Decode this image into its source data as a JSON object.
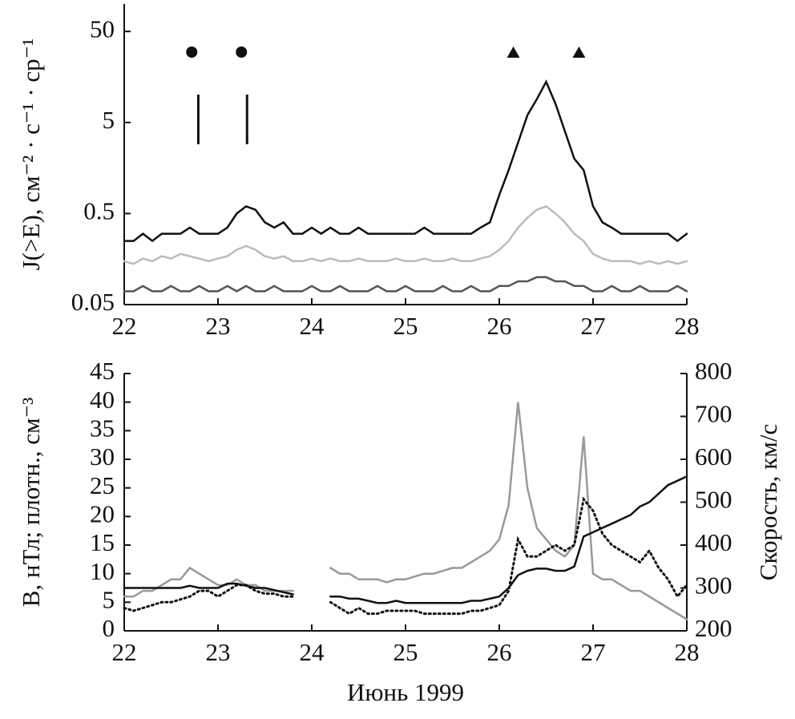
{
  "chart_data": [
    {
      "type": "line",
      "yscale": "log",
      "ylabel": "J(>E), см⁻² · с⁻¹ · ср⁻¹",
      "xlim": [
        22,
        28
      ],
      "xticks": [
        22,
        23,
        24,
        25,
        26,
        27,
        28
      ],
      "ylim": [
        0.05,
        100
      ],
      "yticks": [
        0.05,
        0.5,
        5,
        50
      ],
      "x": [
        22.0,
        22.1,
        22.2,
        22.3,
        22.4,
        22.5,
        22.6,
        22.7,
        22.8,
        22.9,
        23.0,
        23.1,
        23.2,
        23.3,
        23.4,
        23.5,
        23.6,
        23.7,
        23.8,
        23.9,
        24.0,
        24.1,
        24.2,
        24.3,
        24.4,
        24.5,
        24.6,
        24.7,
        24.8,
        24.9,
        25.0,
        25.1,
        25.2,
        25.3,
        25.4,
        25.5,
        25.6,
        25.7,
        25.8,
        25.9,
        26.0,
        26.1,
        26.2,
        26.3,
        26.4,
        26.5,
        26.6,
        26.7,
        26.8,
        26.9,
        27.0,
        27.1,
        27.2,
        27.3,
        27.4,
        27.5,
        27.6,
        27.7,
        27.8,
        27.9,
        28.0
      ],
      "series": [
        {
          "color": "#111111",
          "values": [
            0.25,
            0.25,
            0.3,
            0.25,
            0.3,
            0.3,
            0.3,
            0.35,
            0.3,
            0.3,
            0.3,
            0.35,
            0.5,
            0.6,
            0.55,
            0.4,
            0.35,
            0.4,
            0.3,
            0.3,
            0.35,
            0.3,
            0.35,
            0.3,
            0.3,
            0.35,
            0.3,
            0.3,
            0.3,
            0.3,
            0.3,
            0.3,
            0.35,
            0.3,
            0.3,
            0.3,
            0.3,
            0.3,
            0.35,
            0.4,
            0.8,
            1.5,
            3,
            6,
            9,
            14,
            8,
            4,
            2,
            1.5,
            0.6,
            0.4,
            0.35,
            0.3,
            0.3,
            0.3,
            0.3,
            0.3,
            0.3,
            0.25,
            0.3
          ]
        },
        {
          "color": "#bbbbbb",
          "values": [
            0.15,
            0.14,
            0.16,
            0.15,
            0.17,
            0.16,
            0.18,
            0.17,
            0.16,
            0.15,
            0.16,
            0.17,
            0.2,
            0.22,
            0.2,
            0.17,
            0.16,
            0.17,
            0.15,
            0.15,
            0.16,
            0.15,
            0.16,
            0.15,
            0.15,
            0.16,
            0.15,
            0.15,
            0.15,
            0.16,
            0.15,
            0.15,
            0.16,
            0.15,
            0.15,
            0.16,
            0.15,
            0.15,
            0.16,
            0.17,
            0.2,
            0.25,
            0.35,
            0.45,
            0.55,
            0.6,
            0.5,
            0.4,
            0.3,
            0.25,
            0.18,
            0.16,
            0.15,
            0.15,
            0.15,
            0.14,
            0.15,
            0.14,
            0.15,
            0.14,
            0.15
          ]
        },
        {
          "color": "#555555",
          "values": [
            0.07,
            0.07,
            0.08,
            0.07,
            0.07,
            0.08,
            0.07,
            0.07,
            0.08,
            0.07,
            0.07,
            0.08,
            0.07,
            0.08,
            0.07,
            0.07,
            0.08,
            0.07,
            0.07,
            0.07,
            0.08,
            0.07,
            0.07,
            0.08,
            0.07,
            0.07,
            0.07,
            0.08,
            0.07,
            0.07,
            0.08,
            0.07,
            0.07,
            0.07,
            0.08,
            0.07,
            0.07,
            0.08,
            0.07,
            0.07,
            0.08,
            0.08,
            0.09,
            0.09,
            0.1,
            0.1,
            0.09,
            0.09,
            0.08,
            0.08,
            0.07,
            0.07,
            0.08,
            0.07,
            0.07,
            0.08,
            0.07,
            0.07,
            0.07,
            0.08,
            0.07
          ]
        }
      ],
      "markers": [
        {
          "shape": "circle",
          "x": 22.72
        },
        {
          "shape": "circle",
          "x": 23.25
        },
        {
          "shape": "triangle",
          "x": 26.15
        },
        {
          "shape": "triangle",
          "x": 26.85
        },
        {
          "shape": "bar",
          "x": 22.79
        },
        {
          "shape": "bar",
          "x": 23.31
        }
      ]
    },
    {
      "type": "line",
      "ylabel": "B, нТл; плотн., см⁻³",
      "y2label": "Скорость, км/с",
      "xlabel": "Июнь 1999",
      "xlim": [
        22,
        28
      ],
      "xticks": [
        22,
        23,
        24,
        25,
        26,
        27,
        28
      ],
      "ylim": [
        0,
        45
      ],
      "yticks": [
        0,
        5,
        10,
        15,
        20,
        25,
        30,
        35,
        40,
        45
      ],
      "y2lim": [
        200,
        800
      ],
      "y2ticks": [
        200,
        300,
        400,
        500,
        600,
        700,
        800
      ],
      "x": [
        22.0,
        22.1,
        22.2,
        22.3,
        22.4,
        22.5,
        22.6,
        22.7,
        22.8,
        22.9,
        23.0,
        23.1,
        23.2,
        23.3,
        23.4,
        23.5,
        23.6,
        23.7,
        23.8,
        23.9,
        24.0,
        24.1,
        24.2,
        24.3,
        24.4,
        24.5,
        24.6,
        24.7,
        24.8,
        24.9,
        25.0,
        25.1,
        25.2,
        25.3,
        25.4,
        25.5,
        25.6,
        25.7,
        25.8,
        25.9,
        26.0,
        26.1,
        26.2,
        26.3,
        26.4,
        26.5,
        26.6,
        26.7,
        26.8,
        26.9,
        27.0,
        27.1,
        27.2,
        27.3,
        27.4,
        27.5,
        27.6,
        27.7,
        27.8,
        27.9,
        28.0
      ],
      "series": [
        {
          "color": "#999999",
          "dash": "solid",
          "values": [
            6,
            6,
            7,
            7,
            8,
            9,
            9,
            11,
            10,
            9,
            8,
            8,
            9,
            8,
            8,
            7,
            7,
            7,
            7,
            null,
            null,
            null,
            11,
            10,
            10,
            9,
            9,
            9,
            8.5,
            9,
            9,
            9.5,
            10,
            10,
            10.5,
            11,
            11,
            12,
            13,
            14,
            16,
            22,
            40,
            25,
            18,
            16,
            14,
            13,
            15,
            34,
            10,
            9,
            9,
            8,
            7,
            7,
            6,
            5,
            4,
            3,
            2
          ]
        },
        {
          "color": "#111111",
          "dash": "solid",
          "axis": "y2",
          "values": [
            300,
            300,
            300,
            300,
            300,
            300,
            300,
            305,
            300,
            300,
            300,
            310,
            310,
            305,
            300,
            300,
            295,
            290,
            285,
            null,
            null,
            null,
            280,
            280,
            275,
            275,
            270,
            265,
            265,
            270,
            265,
            265,
            265,
            265,
            265,
            265,
            265,
            270,
            270,
            275,
            280,
            300,
            330,
            340,
            345,
            345,
            340,
            340,
            350,
            420,
            430,
            440,
            450,
            460,
            470,
            490,
            500,
            520,
            540,
            550,
            560
          ]
        },
        {
          "color": "#111111",
          "dash": "dotted",
          "values": [
            4,
            3.5,
            4,
            4.5,
            5,
            5,
            5.5,
            6,
            7,
            7,
            6,
            7,
            8,
            8,
            7,
            6.5,
            6.5,
            6,
            6,
            null,
            null,
            null,
            5,
            4,
            3,
            4,
            3,
            3,
            3.5,
            3.5,
            3.5,
            3.5,
            3,
            3,
            3,
            3,
            3,
            3.5,
            3.5,
            4,
            4.5,
            7,
            16,
            13,
            13,
            14,
            15,
            14,
            15,
            23,
            21,
            17,
            15,
            14,
            13,
            12,
            14,
            11,
            9,
            6,
            8
          ]
        }
      ]
    }
  ]
}
